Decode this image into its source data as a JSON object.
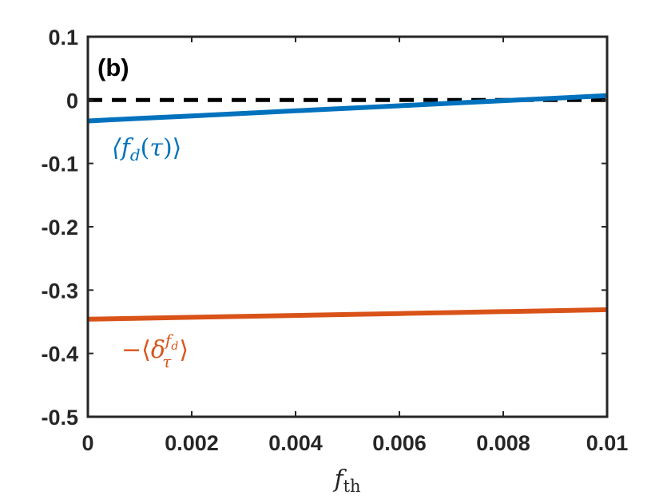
{
  "chart_data": {
    "type": "line",
    "panel_label": "(b)",
    "xlabel": "f_th",
    "ylabel": "",
    "xlim": [
      0,
      0.01
    ],
    "ylim": [
      -0.5,
      0.1
    ],
    "xticks": [
      0,
      0.002,
      0.004,
      0.006,
      0.008,
      0.01
    ],
    "xtick_labels": [
      "0",
      "0.002",
      "0.004",
      "0.006",
      "0.008",
      "0.01"
    ],
    "yticks": [
      0.1,
      0,
      -0.1,
      -0.2,
      -0.3,
      -0.4,
      -0.5
    ],
    "ytick_labels": [
      "0.1",
      "0",
      "-0.1",
      "-0.2",
      "-0.3",
      "-0.4",
      "-0.5"
    ],
    "grid": false,
    "series": [
      {
        "name": "⟨f_d(τ)⟩",
        "color": "#0072bd",
        "style": "solid",
        "x": [
          0,
          0.001,
          0.002,
          0.003,
          0.004,
          0.005,
          0.006,
          0.007,
          0.008,
          0.009,
          0.01
        ],
        "y": [
          -0.033,
          -0.029,
          -0.025,
          -0.021,
          -0.017,
          -0.013,
          -0.009,
          -0.005,
          -0.001,
          0.003,
          0.007
        ]
      },
      {
        "name": "−⟨δ_τ^{f_d}⟩",
        "color": "#d95319",
        "style": "solid",
        "x": [
          0,
          0.001,
          0.002,
          0.003,
          0.004,
          0.005,
          0.006,
          0.007,
          0.008,
          0.009,
          0.01
        ],
        "y": [
          -0.346,
          -0.3445,
          -0.343,
          -0.3415,
          -0.34,
          -0.3385,
          -0.337,
          -0.3355,
          -0.334,
          -0.3325,
          -0.331
        ]
      },
      {
        "name": "",
        "color": "#000000",
        "style": "dashed",
        "x": [
          0,
          0.01
        ],
        "y": [
          0,
          0
        ]
      }
    ]
  }
}
